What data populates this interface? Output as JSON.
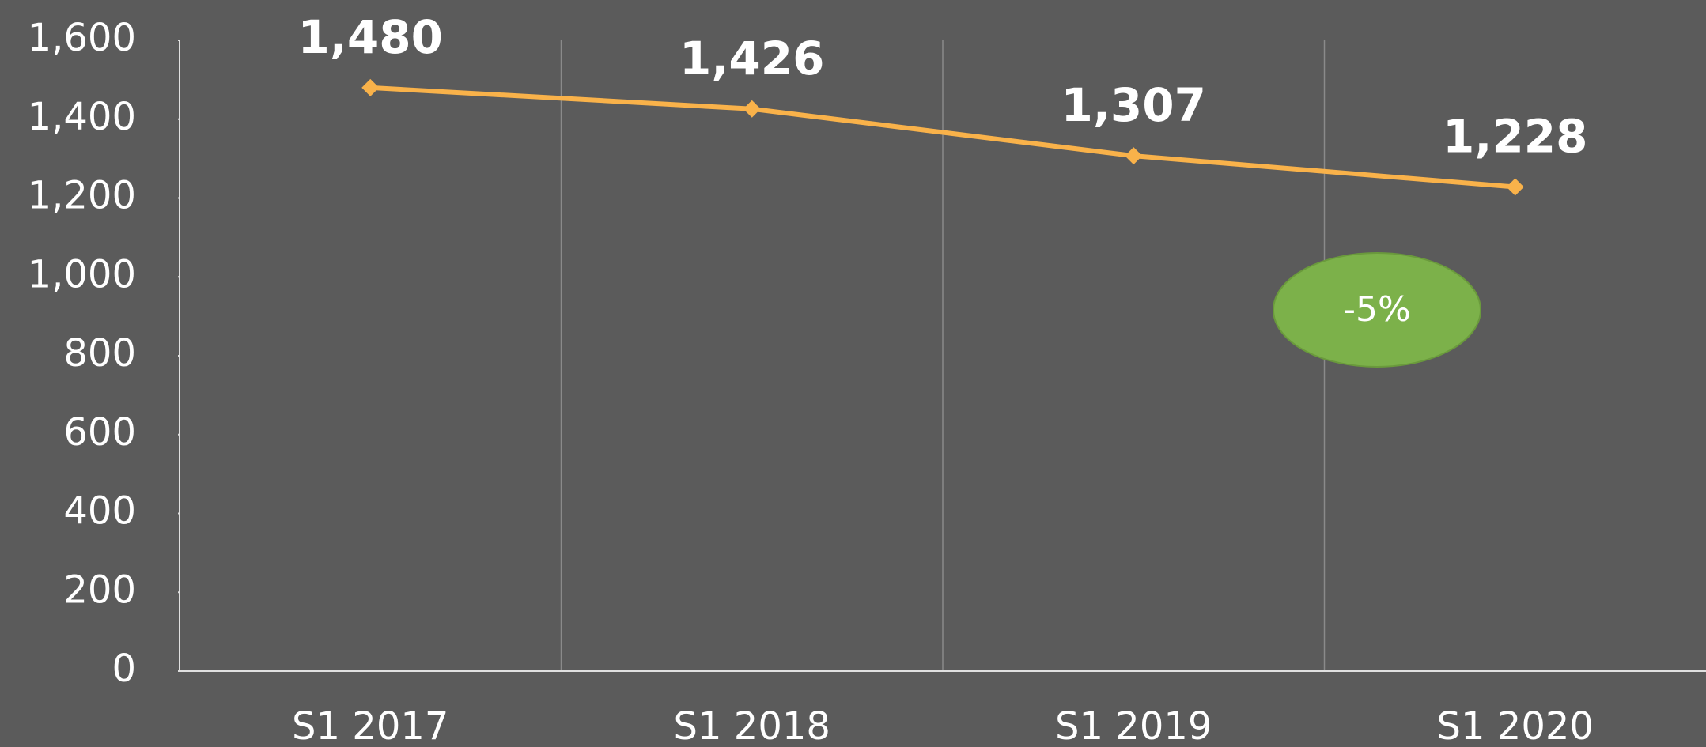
{
  "chart_data": {
    "type": "line",
    "categories": [
      "S1 2017",
      "S1 2018",
      "S1 2019",
      "S1 2020"
    ],
    "series": [
      {
        "color": "#f9b24a",
        "values": [
          1480,
          1426,
          1307,
          1228
        ],
        "value_labels": [
          "1,480",
          "1,426",
          "1,307",
          "1,228"
        ]
      }
    ],
    "ylim": [
      0,
      1600
    ],
    "yticks": [
      0,
      200,
      400,
      600,
      800,
      {
        "value": 1000,
        "label": "1,000"
      },
      {
        "value": 1200,
        "label": "1,200"
      },
      {
        "value": 1400,
        "label": "1,400"
      },
      {
        "value": 1600,
        "label": "1,600"
      }
    ],
    "annotation": {
      "text": "-5%",
      "color": "#7cb14a"
    },
    "grid": false
  }
}
